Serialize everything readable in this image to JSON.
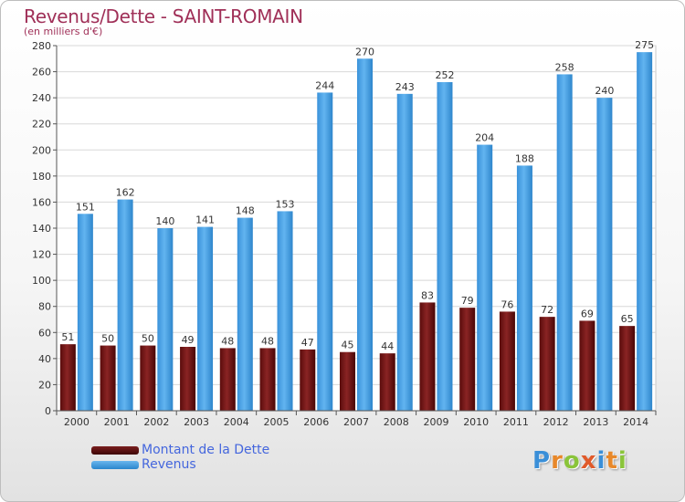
{
  "header": {
    "title": "Revenus/Dette - SAINT-ROMAIN",
    "subtitle": "(en milliers d'€)"
  },
  "chart_data": {
    "type": "bar",
    "categories": [
      "2000",
      "2001",
      "2002",
      "2003",
      "2004",
      "2005",
      "2006",
      "2007",
      "2008",
      "2009",
      "2010",
      "2011",
      "2012",
      "2013",
      "2014"
    ],
    "series": [
      {
        "name": "Montant de la Dette",
        "color": "#6e1414",
        "values": [
          51,
          50,
          50,
          49,
          48,
          48,
          47,
          45,
          44,
          83,
          79,
          76,
          72,
          69,
          65
        ]
      },
      {
        "name": "Revenus",
        "color": "#4aa3e6",
        "values": [
          151,
          162,
          140,
          141,
          148,
          153,
          244,
          270,
          243,
          252,
          204,
          188,
          258,
          240,
          275
        ]
      }
    ],
    "ylim": [
      0,
      280
    ],
    "yticks": [
      0,
      20,
      40,
      60,
      80,
      100,
      120,
      140,
      160,
      180,
      200,
      220,
      240,
      260,
      280
    ],
    "grid": true,
    "legend_position": "bottom-left"
  },
  "legend": {
    "items": [
      {
        "label": "Montant de la Dette"
      },
      {
        "label": "Revenus"
      }
    ]
  },
  "logo": {
    "letters": [
      "P",
      "r",
      "o",
      "x",
      "i",
      "t",
      "i"
    ],
    "colors": [
      "#3a8fd8",
      "#e8882a",
      "#8ac43a",
      "#e05a2a",
      "#3a8fd8",
      "#e8882a",
      "#8ac43a"
    ]
  }
}
